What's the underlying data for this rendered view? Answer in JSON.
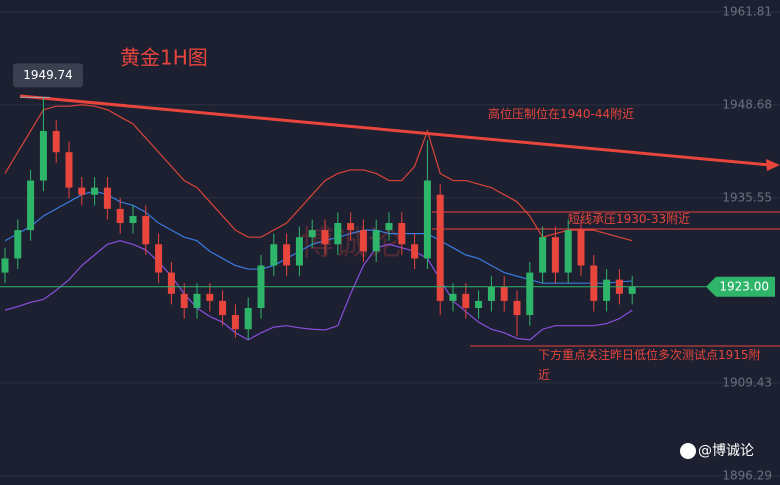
{
  "chart_data": {
    "type": "candlestick",
    "title": "黄金1H图",
    "ylim": [
      1895.0,
      1963.5
    ],
    "yticks": [
      1961.81,
      1948.68,
      1935.55,
      1909.43,
      1896.29
    ],
    "grid": true,
    "up_color": "#2fb56a",
    "down_color": "#e8453c",
    "open": [
      1925,
      1927,
      1931,
      1938,
      1945,
      1942,
      1937,
      1936,
      1937,
      1934,
      1932,
      1933,
      1929,
      1925,
      1922,
      1920,
      1922,
      1921,
      1919,
      1917,
      1920,
      1926,
      1929,
      1926,
      1930,
      1931,
      1929,
      1932,
      1931,
      1928,
      1931,
      1932,
      1929,
      1927,
      1936,
      1921,
      1922,
      1920,
      1921,
      1923,
      1921,
      1919,
      1925,
      1930,
      1925,
      1931,
      1926,
      1921,
      1924,
      1922
    ],
    "high": [
      1928.5,
      1932.5,
      1939.5,
      1949.74,
      1946.5,
      1943.5,
      1938.5,
      1938.5,
      1938.5,
      1935.5,
      1934.5,
      1934.5,
      1930.5,
      1926.5,
      1923.5,
      1923.5,
      1923.5,
      1922.5,
      1920.5,
      1921.5,
      1927.5,
      1930.5,
      1930.5,
      1931.5,
      1932.5,
      1932.5,
      1933.5,
      1933.5,
      1932.5,
      1932.5,
      1933.5,
      1933.5,
      1930.5,
      1943.7,
      1937.5,
      1923.5,
      1923.5,
      1922.5,
      1924.5,
      1924.5,
      1922.5,
      1926.5,
      1931.5,
      1931.5,
      1932.5,
      1932.5,
      1927.5,
      1925.5,
      1925.5,
      1924.5
    ],
    "low": [
      1923.5,
      1925.5,
      1929.5,
      1936.5,
      1940.5,
      1935.5,
      1934.5,
      1934.5,
      1932.5,
      1930.5,
      1930.5,
      1927.5,
      1923.5,
      1920.5,
      1918.5,
      1918.5,
      1919.5,
      1917.5,
      1915.8,
      1915.5,
      1918.5,
      1924.5,
      1924.5,
      1924.5,
      1928.5,
      1927.5,
      1927.5,
      1929.5,
      1926.5,
      1926.5,
      1929.5,
      1927.5,
      1925.5,
      1925.5,
      1919,
      1919.5,
      1918.5,
      1918.5,
      1919.5,
      1919.5,
      1916,
      1917.5,
      1923.5,
      1923.5,
      1923.5,
      1924.5,
      1919.5,
      1919.5,
      1920.5,
      1920.5
    ],
    "close": [
      1927,
      1931,
      1938,
      1945,
      1942,
      1937,
      1936,
      1937,
      1934,
      1932,
      1933,
      1929,
      1925,
      1922,
      1920,
      1922,
      1921,
      1919,
      1917,
      1920,
      1926,
      1929,
      1926,
      1930,
      1931,
      1929,
      1932,
      1931,
      1928,
      1931,
      1932,
      1929,
      1927,
      1938,
      1921,
      1922,
      1920,
      1921,
      1923,
      1921,
      1919,
      1925,
      1930,
      1925,
      1931,
      1926,
      1921,
      1924,
      1922,
      1923
    ],
    "overlays": [
      {
        "color": "#d9443a",
        "values": [
          1939,
          1942,
          1945,
          1948,
          1948.5,
          1948.5,
          1948.7,
          1948.5,
          1948,
          1947,
          1946,
          1944,
          1942,
          1940,
          1938,
          1937,
          1935,
          1933,
          1931,
          1930,
          1930,
          1931,
          1932,
          1934,
          1936,
          1938,
          1939,
          1939.5,
          1939.5,
          1939,
          1938,
          1938,
          1940,
          1945,
          1939,
          1938,
          1938,
          1937.5,
          1937,
          1936,
          1935,
          1933,
          1930,
          1930.5,
          1931,
          1931,
          1931,
          1930.5,
          1930,
          1929.5
        ]
      },
      {
        "color": "#3a7be0",
        "values": [
          1929.5,
          1930.5,
          1931.5,
          1933,
          1934,
          1935,
          1936,
          1936.5,
          1936,
          1935,
          1934.5,
          1933.5,
          1932,
          1931,
          1930,
          1929.5,
          1928,
          1927,
          1926,
          1925.5,
          1925.5,
          1926,
          1927,
          1928,
          1929,
          1929.5,
          1930,
          1930.5,
          1931,
          1931,
          1930.5,
          1930.5,
          1930.5,
          1930.5,
          1929.5,
          1928.5,
          1927.5,
          1927,
          1926,
          1925,
          1924.5,
          1924,
          1923.5,
          1923.5,
          1923.5,
          1923.5,
          1923.5,
          1923.5,
          1923.7,
          1923.8
        ]
      },
      {
        "color": "#8b4fe0",
        "values": [
          1919.7,
          1920.2,
          1920.8,
          1921.2,
          1922.5,
          1924,
          1926,
          1927.5,
          1929,
          1929.5,
          1929,
          1928.2,
          1926.5,
          1924.5,
          1922,
          1920,
          1918.8,
          1918,
          1916.5,
          1915.5,
          1916.5,
          1917.3,
          1917.5,
          1917.2,
          1917,
          1916.9,
          1917.5,
          1922,
          1926,
          1928.5,
          1929,
          1928.5,
          1928,
          1927,
          1924,
          1921,
          1919.5,
          1918,
          1917,
          1916.5,
          1915.7,
          1915.5,
          1917,
          1917.5,
          1917.5,
          1917.5,
          1917.5,
          1917.8,
          1918.5,
          1919.7
        ]
      }
    ],
    "peak_label": 1949.74,
    "last_price": {
      "value": 1923.0,
      "label": "1923.00"
    },
    "annotations": [
      "高位压制位在1940-44附近",
      "短线承压1930-33附近",
      "下方重点关注昨日低位多次测试点1915附近"
    ],
    "watermark": "博诚论",
    "credit": "@博诚论"
  }
}
